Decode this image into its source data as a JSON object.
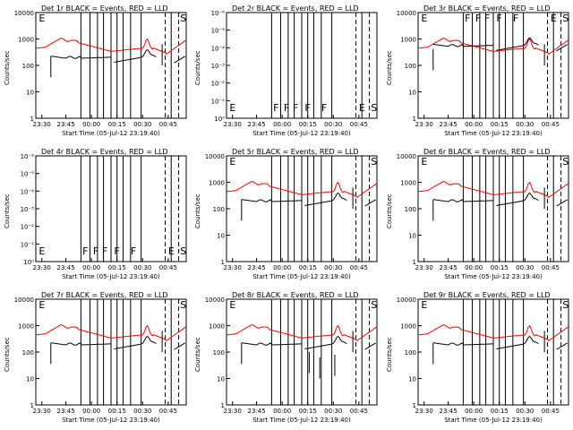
{
  "colors": {
    "events": "#000000",
    "lld": "#ff0000",
    "axes": "#000000"
  },
  "chart_data": [
    {
      "type": "line",
      "title": "Det 1r BLACK = Events, RED = LLD",
      "xlabel": "Start Time (05-Jul-12 23:19:40)",
      "ylabel": "Counts/sec",
      "scale": "log",
      "yticks": [
        "1",
        "10",
        "100",
        "1000",
        "10000"
      ],
      "xticks": [
        "23:30",
        "23:45",
        "00:00",
        "00:15",
        "00:30",
        "00:45"
      ],
      "flags": [
        "E",
        "S"
      ],
      "has_data": true,
      "event_variant": "normal"
    },
    {
      "type": "line",
      "title": "Det 2r BLACK = Events, RED = LLD",
      "xlabel": "Start Time (05-Jul-12 23:19:40)",
      "ylabel": "Counts/sec",
      "scale": "tiny",
      "yticks": [
        "10⁰",
        "10⁻¹",
        "10⁻²",
        "10⁻³",
        "10⁻⁴",
        "10⁻⁵",
        "10⁻⁶"
      ],
      "xticks": [
        "23:30",
        "23:45",
        "00:00",
        "00:15",
        "00:30",
        "00:45"
      ],
      "flags": [
        "E",
        "F",
        "F",
        "F",
        "F",
        "F",
        "E",
        "S"
      ],
      "has_data": false
    },
    {
      "type": "line",
      "title": "Det 3r BLACK = Events, RED = LLD",
      "xlabel": "Start Time (05-Jul-12 23:19:40)",
      "ylabel": "Counts/sec",
      "scale": "log",
      "yticks": [
        "1",
        "10",
        "100",
        "1000",
        "10000"
      ],
      "xticks": [
        "23:30",
        "23:45",
        "00:00",
        "00:15",
        "00:30",
        "00:45"
      ],
      "flags": [
        "E",
        "F",
        "F",
        "F",
        "F",
        "F",
        "E",
        "S"
      ],
      "has_data": true,
      "event_variant": "high"
    },
    {
      "type": "line",
      "title": "Det 4r BLACK = Events, RED = LLD",
      "xlabel": "Start Time (05-Jul-12 23:19:40)",
      "ylabel": "Counts/sec",
      "scale": "tiny",
      "yticks": [
        "10⁰",
        "10⁻¹",
        "10⁻²",
        "10⁻³",
        "10⁻⁴",
        "10⁻⁵",
        "10⁻⁶"
      ],
      "xticks": [
        "23:30",
        "23:45",
        "00:00",
        "00:15",
        "00:30",
        "00:45"
      ],
      "flags": [
        "E",
        "F",
        "F",
        "F",
        "F",
        "F",
        "E",
        "S"
      ],
      "has_data": false
    },
    {
      "type": "line",
      "title": "Det 5r BLACK = Events, RED = LLD",
      "xlabel": "Start Time (05-Jul-12 23:19:40)",
      "ylabel": "Counts/sec",
      "scale": "log",
      "yticks": [
        "1",
        "10",
        "100",
        "1000",
        "10000"
      ],
      "xticks": [
        "23:30",
        "23:45",
        "00:00",
        "00:15",
        "00:30",
        "00:45"
      ],
      "flags": [
        "E",
        "S"
      ],
      "has_data": true,
      "event_variant": "normal"
    },
    {
      "type": "line",
      "title": "Det 6r BLACK = Events, RED = LLD",
      "xlabel": "Start Time (05-Jul-12 23:19:40)",
      "ylabel": "Counts/sec",
      "scale": "log",
      "yticks": [
        "1",
        "10",
        "100",
        "1000",
        "10000"
      ],
      "xticks": [
        "23:30",
        "23:45",
        "00:00",
        "00:15",
        "00:30",
        "00:45"
      ],
      "flags": [
        "E",
        "S"
      ],
      "has_data": true,
      "event_variant": "normal"
    },
    {
      "type": "line",
      "title": "Det 7r BLACK = Events, RED = LLD",
      "xlabel": "Start Time (05-Jul-12 23:19:40)",
      "ylabel": "Counts/sec",
      "scale": "log",
      "yticks": [
        "1",
        "10",
        "100",
        "1000",
        "10000"
      ],
      "xticks": [
        "23:30",
        "23:45",
        "00:00",
        "00:15",
        "00:30",
        "00:45"
      ],
      "flags": [
        "E",
        "S"
      ],
      "has_data": true,
      "event_variant": "normal"
    },
    {
      "type": "line",
      "title": "Det 8r BLACK = Events, RED = LLD",
      "xlabel": "Start Time (05-Jul-12 23:19:40)",
      "ylabel": "Counts/sec",
      "scale": "log",
      "yticks": [
        "1",
        "10",
        "100",
        "1000",
        "10000"
      ],
      "xticks": [
        "23:30",
        "23:45",
        "00:00",
        "00:15",
        "00:30",
        "00:45"
      ],
      "flags": [
        "E",
        "S"
      ],
      "has_data": true,
      "event_variant": "dips"
    },
    {
      "type": "line",
      "title": "Det 9r BLACK = Events, RED = LLD",
      "xlabel": "Start Time (05-Jul-12 23:19:40)",
      "ylabel": "Counts/sec",
      "scale": "log",
      "yticks": [
        "1",
        "10",
        "100",
        "1000",
        "10000"
      ],
      "xticks": [
        "23:30",
        "23:45",
        "00:00",
        "00:15",
        "00:30",
        "00:45"
      ],
      "flags": [
        "E",
        "S"
      ],
      "has_data": true,
      "event_variant": "normal"
    }
  ]
}
